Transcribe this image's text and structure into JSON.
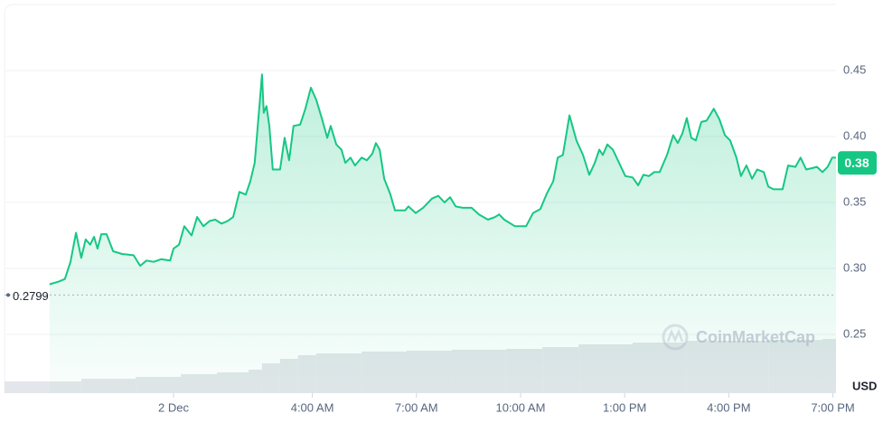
{
  "chart_data": {
    "type": "area",
    "series": [
      {
        "color": "#16c784",
        "x": [
          -3.57,
          -3.31,
          -3.13,
          -2.97,
          -2.81,
          -2.66,
          -2.53,
          -2.4,
          -2.29,
          -2.19,
          -2.08,
          -1.93,
          -1.74,
          -1.48,
          -1.15,
          -0.96,
          -0.78,
          -0.57,
          -0.36,
          -0.1,
          0,
          0.16,
          0.31,
          0.52,
          0.68,
          0.86,
          1.04,
          1.2,
          1.38,
          1.56,
          1.72,
          1.9,
          2.08,
          2.21,
          2.34,
          2.47,
          2.55,
          2.6,
          2.68,
          2.76,
          2.86,
          3.07,
          3.2,
          3.33,
          3.46,
          3.65,
          3.8,
          3.96,
          4.11,
          4.27,
          4.43,
          4.53,
          4.69,
          4.84,
          4.95,
          5.1,
          5.23,
          5.42,
          5.57,
          5.73,
          5.83,
          5.94,
          6.07,
          6.25,
          6.38,
          6.67,
          6.77,
          6.98,
          7.19,
          7.45,
          7.63,
          7.81,
          7.97,
          8.13,
          8.33,
          8.59,
          8.8,
          9.06,
          9.27,
          9.38,
          9.53,
          9.84,
          10.16,
          10.36,
          10.57,
          10.76,
          10.94,
          11.07,
          11.22,
          11.41,
          11.61,
          11.8,
          11.98,
          12.14,
          12.27,
          12.37,
          12.5,
          12.66,
          12.84,
          13.02,
          13.23,
          13.39,
          13.54,
          13.7,
          13.85,
          14.01,
          14.22,
          14.4,
          14.53,
          14.66,
          14.79,
          14.92,
          15.05,
          15.21,
          15.36,
          15.57,
          15.73,
          15.89,
          16.04,
          16.22,
          16.35,
          16.51,
          16.67,
          16.82,
          17.01,
          17.14,
          17.29,
          17.55,
          17.71,
          17.92,
          18.07,
          18.23,
          18.39,
          18.54,
          18.7,
          18.85,
          18.98,
          19.09
        ],
        "values": [
          0.288,
          0.29,
          0.292,
          0.305,
          0.327,
          0.308,
          0.322,
          0.318,
          0.324,
          0.315,
          0.326,
          0.326,
          0.313,
          0.311,
          0.31,
          0.302,
          0.306,
          0.305,
          0.307,
          0.306,
          0.315,
          0.318,
          0.332,
          0.325,
          0.339,
          0.332,
          0.336,
          0.337,
          0.334,
          0.336,
          0.339,
          0.358,
          0.356,
          0.366,
          0.38,
          0.421,
          0.447,
          0.418,
          0.423,
          0.408,
          0.375,
          0.375,
          0.399,
          0.382,
          0.408,
          0.409,
          0.421,
          0.437,
          0.428,
          0.414,
          0.399,
          0.408,
          0.394,
          0.39,
          0.38,
          0.384,
          0.378,
          0.384,
          0.382,
          0.387,
          0.395,
          0.39,
          0.368,
          0.356,
          0.344,
          0.344,
          0.347,
          0.342,
          0.346,
          0.353,
          0.355,
          0.35,
          0.354,
          0.347,
          0.346,
          0.346,
          0.341,
          0.337,
          0.339,
          0.341,
          0.337,
          0.332,
          0.332,
          0.342,
          0.345,
          0.357,
          0.366,
          0.384,
          0.386,
          0.416,
          0.397,
          0.386,
          0.371,
          0.38,
          0.39,
          0.386,
          0.394,
          0.39,
          0.38,
          0.37,
          0.369,
          0.363,
          0.371,
          0.37,
          0.373,
          0.373,
          0.386,
          0.401,
          0.395,
          0.402,
          0.414,
          0.399,
          0.397,
          0.411,
          0.412,
          0.421,
          0.413,
          0.401,
          0.397,
          0.384,
          0.37,
          0.378,
          0.368,
          0.375,
          0.373,
          0.362,
          0.36,
          0.36,
          0.378,
          0.377,
          0.384,
          0.375,
          0.376,
          0.377,
          0.373,
          0.377,
          0.384,
          0.384
        ]
      }
    ],
    "volume": {
      "color": "#e3e6ea",
      "x": [
        -4.87,
        -2.66,
        -1.09,
        0.21,
        1.25,
        2.16,
        2.55,
        3.07,
        3.59,
        4.11,
        5.42,
        6.72,
        8.02,
        9.58,
        10.63,
        11.67,
        13.23,
        14.79,
        17.14,
        18.7
      ],
      "values": [
        13,
        16,
        18,
        21,
        23,
        26,
        33,
        38,
        42,
        44,
        46,
        47,
        48,
        49,
        51,
        54,
        56,
        58,
        59,
        60
      ],
      "lim": [
        0,
        100
      ]
    },
    "xlim": [
      -4.87,
      19.09
    ],
    "xticks": [
      {
        "value": 0,
        "label": "2 Dec"
      },
      {
        "value": 4,
        "label": "4:00 AM"
      },
      {
        "value": 7,
        "label": "7:00 AM"
      },
      {
        "value": 10,
        "label": "10:00 AM"
      },
      {
        "value": 13,
        "label": "1:00 PM"
      },
      {
        "value": 16,
        "label": "4:00 PM"
      },
      {
        "value": 19,
        "label": "7:00 PM"
      }
    ],
    "ylim": [
      0.2055,
      0.5
    ],
    "yticks": [
      0.25,
      {
        "value": 0.3,
        "label": "0.30"
      },
      0.35,
      {
        "value": 0.4,
        "label": "0.40"
      },
      0.45
    ],
    "grid": true,
    "reference_line": 0.2799,
    "current_price": 0.38,
    "y_unit": "USD",
    "watermark": "CoinMarketCap"
  }
}
